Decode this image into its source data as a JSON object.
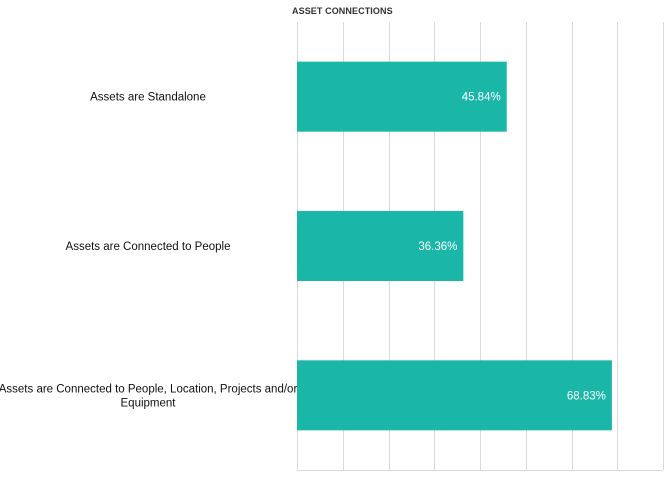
{
  "chart_data": {
    "type": "bar",
    "orientation": "horizontal",
    "title": "ASSET CONNECTIONS",
    "categories": [
      [
        "Assets are Standalone"
      ],
      [
        "Assets are Connected to People"
      ],
      [
        "Assets are Connected to People, Location, Projects and/or",
        "Equipment"
      ]
    ],
    "values": [
      45.84,
      36.36,
      68.83
    ],
    "value_labels": [
      "45.84%",
      "36.36%",
      "68.83%"
    ],
    "xlim": [
      0,
      80
    ],
    "x_gridlines": [
      0,
      10,
      20,
      30,
      40,
      50,
      60,
      70,
      80
    ],
    "grid": true,
    "legend": "none",
    "bar_color": "#1ab6a8",
    "grid_color": "#d9d9d9",
    "value_label_color": "#ffffff"
  }
}
